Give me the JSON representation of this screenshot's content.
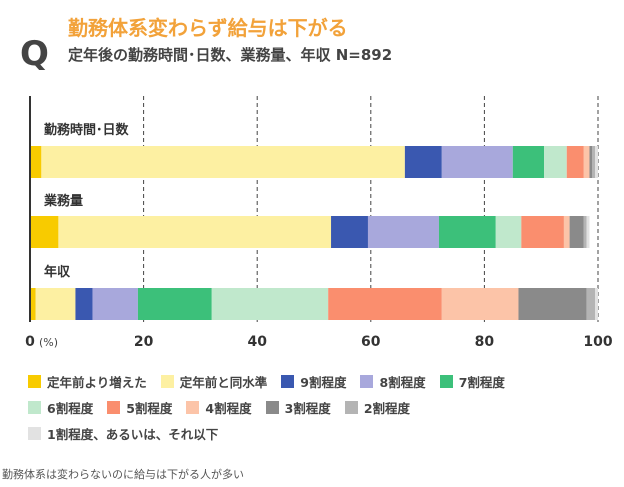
{
  "header": {
    "q_mark": "Q",
    "title": "勤務体系変わらず給与は下がる",
    "subtitle": "定年後の勤務時間･日数、業務量、年収 N=892"
  },
  "caption": "勤務体系は変わらないのに給与は下がる人が多い",
  "chart_data": {
    "type": "bar",
    "orientation": "horizontal",
    "stacked": true,
    "categories": [
      "勤務時間･日数",
      "業務量",
      "年収"
    ],
    "xlim": [
      0,
      100
    ],
    "x_ticks": [
      0,
      20,
      40,
      60,
      80,
      100
    ],
    "x_unit": "(%)",
    "grid": "vertical-dashed",
    "legend_position": "bottom",
    "series": [
      {
        "name": "定年前より増えた",
        "color": "#f8cb00",
        "values": [
          2,
          5,
          1
        ]
      },
      {
        "name": "定年前と同水準",
        "color": "#fdf0a2",
        "values": [
          64,
          48,
          7
        ]
      },
      {
        "name": "9割程度",
        "color": "#3a58b0",
        "values": [
          6.5,
          6.5,
          3
        ]
      },
      {
        "name": "8割程度",
        "color": "#a8a8dc",
        "values": [
          12.5,
          12.5,
          8
        ]
      },
      {
        "name": "7割程度",
        "color": "#3cc07a",
        "values": [
          5.5,
          10,
          13
        ]
      },
      {
        "name": "6割程度",
        "color": "#c0e8cc",
        "values": [
          4,
          4.5,
          20.5
        ]
      },
      {
        "name": "5割程度",
        "color": "#fa8e6e",
        "values": [
          3,
          7.5,
          20
        ]
      },
      {
        "name": "4割程度",
        "color": "#fcc4a8",
        "values": [
          1,
          1,
          13.5
        ]
      },
      {
        "name": "3割程度",
        "color": "#8a8a8a",
        "values": [
          0.5,
          2.5,
          12
        ]
      },
      {
        "name": "2割程度",
        "color": "#b4b4b4",
        "values": [
          0.5,
          0.5,
          1.5
        ]
      },
      {
        "name": "1割程度、あるいは、それ以下",
        "color": "#e2e2e2",
        "values": [
          0.5,
          0.5,
          0.5
        ]
      }
    ]
  }
}
